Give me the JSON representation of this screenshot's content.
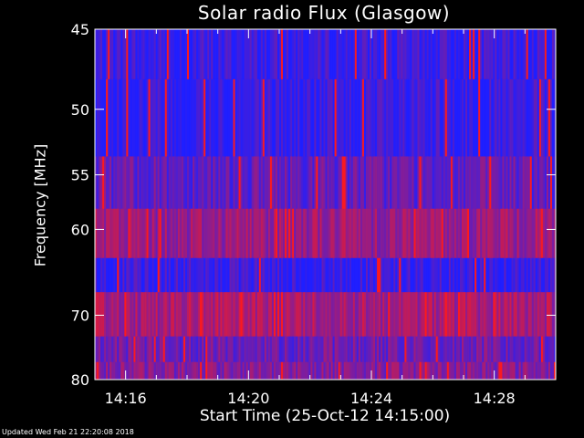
{
  "chart_data": {
    "type": "heatmap",
    "title": "Solar radio Flux (Glasgow)",
    "xlabel": "Start Time (25-Oct-12 14:15:00)",
    "ylabel": "Frequency [MHz]",
    "x_ticks": [
      "14:16",
      "14:20",
      "14:24",
      "14:28"
    ],
    "x_tick_minutes": [
      1,
      5,
      9,
      13
    ],
    "xlim_minutes": [
      0,
      15
    ],
    "y_ticks": [
      45,
      50,
      55,
      60,
      70,
      80
    ],
    "y_axis_scale": "reciprocal",
    "ylim": [
      45,
      80
    ],
    "colors": {
      "low": "#1f1fff",
      "high": "#ff1a1a",
      "background": "#000000"
    },
    "bands": [
      {
        "from": 45,
        "to": 48,
        "level": 0.1
      },
      {
        "from": 48,
        "to": 53.5,
        "level": 0.08
      },
      {
        "from": 53.5,
        "to": 58,
        "level": 0.3
      },
      {
        "from": 58,
        "to": 63,
        "level": 0.55
      },
      {
        "from": 63,
        "to": 67,
        "level": 0.1
      },
      {
        "from": 67,
        "to": 73,
        "level": 0.6
      },
      {
        "from": 73,
        "to": 77,
        "level": 0.35
      },
      {
        "from": 77,
        "to": 80,
        "level": 0.45
      }
    ]
  },
  "footer": "Updated Wed Feb 21 22:20:08 2018"
}
